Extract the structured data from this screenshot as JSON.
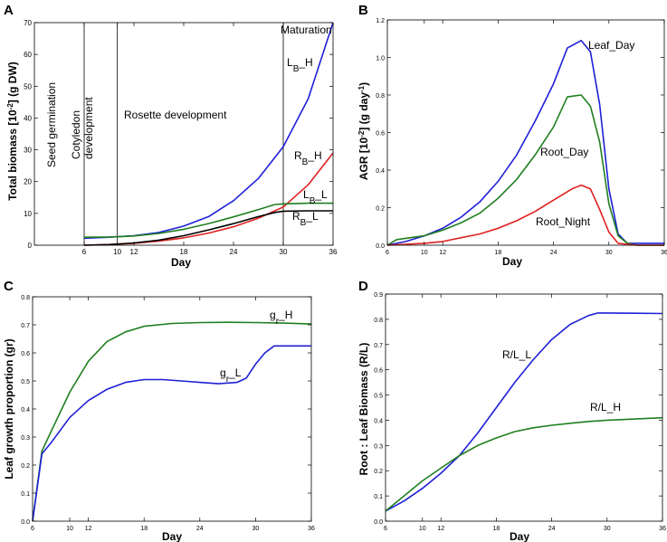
{
  "chart_data": [
    {
      "panel": "A",
      "type": "line",
      "xlabel": "Day",
      "ylabel": "Total biomass [10^-2] (g DW)",
      "ylabel_parts": {
        "pre": "Total biomass [10",
        "sup": "-2",
        "post": "] (g DW)"
      },
      "xlim": [
        0,
        36
      ],
      "ylim": [
        0,
        70
      ],
      "xticks": [
        "6",
        "10",
        "12",
        "18",
        "24",
        "30",
        "36"
      ],
      "xtick_values": [
        6,
        10,
        12,
        18,
        24,
        30,
        36
      ],
      "yticks": [
        "0",
        "10",
        "20",
        "30",
        "40",
        "50",
        "60",
        "70"
      ],
      "ytick_values": [
        0,
        10,
        20,
        30,
        40,
        50,
        60,
        70
      ],
      "phase_lines": [
        6,
        10,
        30
      ],
      "phases": [
        "Seed germination",
        "Cotyledon development",
        "Rosette development",
        "Maturation"
      ],
      "series": [
        {
          "name": "LB_H",
          "label_main": "L",
          "label_sub": "B",
          "label_suffix": "_H",
          "color": "#1f1fd6",
          "x": [
            6,
            9,
            12,
            15,
            18,
            21,
            24,
            27,
            30,
            33,
            36
          ],
          "values": [
            2.2,
            2.5,
            3,
            4,
            6,
            9,
            14,
            21,
            31,
            46,
            70
          ]
        },
        {
          "name": "RB_H",
          "label_main": "R",
          "label_sub": "B",
          "label_suffix": "_H",
          "color": "#e02020",
          "x": [
            6,
            9,
            12,
            15,
            18,
            21,
            24,
            27,
            30,
            33,
            36
          ],
          "values": [
            0,
            0.2,
            0.6,
            1.3,
            2.3,
            3.8,
            5.8,
            8.5,
            12,
            19,
            29
          ]
        },
        {
          "name": "LB_L",
          "label_main": "L",
          "label_sub": "B",
          "label_suffix": "_L",
          "color": "#1f7f1f",
          "x": [
            6,
            9,
            12,
            15,
            18,
            21,
            24,
            27,
            29,
            30,
            33,
            36
          ],
          "values": [
            2.5,
            2.6,
            2.9,
            3.7,
            5,
            6.8,
            8.9,
            11.2,
            12.8,
            13,
            13.2,
            13.2
          ]
        },
        {
          "name": "RB_L",
          "label_main": "R",
          "label_sub": "B",
          "label_suffix": "_L",
          "color": "#000000",
          "x": [
            6,
            9,
            12,
            15,
            18,
            21,
            24,
            27,
            29,
            30,
            33,
            36
          ],
          "values": [
            0,
            0.2,
            0.7,
            1.6,
            3,
            4.8,
            6.8,
            9,
            10.3,
            10.7,
            10.8,
            10.8
          ]
        }
      ]
    },
    {
      "panel": "B",
      "type": "line",
      "xlabel": "Day",
      "ylabel": "AGR [10^-2] (g day^-1)",
      "ylabel_parts": {
        "pre": "AGR [10",
        "sup": "-2",
        "mid": "] (g day",
        "sup2": "-1",
        "post": ")"
      },
      "xlim": [
        6,
        36
      ],
      "ylim": [
        0,
        1.2
      ],
      "xticks": [
        "6",
        "10",
        "12",
        "18",
        "24",
        "30",
        "36"
      ],
      "xtick_values": [
        6,
        10,
        12,
        18,
        24,
        30,
        36
      ],
      "yticks": [
        "0.0",
        "0.2",
        "0.4",
        "0.6",
        "0.8",
        "1.0",
        "1.2"
      ],
      "ytick_values": [
        0,
        0.2,
        0.4,
        0.6,
        0.8,
        1.0,
        1.2
      ],
      "series": [
        {
          "name": "Leaf_Day",
          "color": "#1f1fd6",
          "x": [
            6,
            8,
            10,
            12,
            14,
            16,
            18,
            20,
            22,
            24,
            25.5,
            27,
            28,
            29,
            30,
            31,
            32,
            33,
            36
          ],
          "values": [
            0,
            0.02,
            0.05,
            0.09,
            0.15,
            0.23,
            0.34,
            0.48,
            0.66,
            0.86,
            1.05,
            1.09,
            1.03,
            0.75,
            0.3,
            0.06,
            0.01,
            0.01,
            0.01
          ]
        },
        {
          "name": "Root_Day",
          "color": "#1f7f1f",
          "x": [
            6,
            7,
            10,
            12,
            14,
            16,
            18,
            20,
            22,
            24,
            25.5,
            27,
            28,
            29,
            30,
            31,
            32,
            33,
            36
          ],
          "values": [
            0,
            0.03,
            0.05,
            0.08,
            0.12,
            0.17,
            0.25,
            0.35,
            0.48,
            0.63,
            0.79,
            0.8,
            0.74,
            0.55,
            0.22,
            0.05,
            0.01,
            0,
            0
          ]
        },
        {
          "name": "Root_Night",
          "color": "#e02020",
          "x": [
            6,
            10,
            12,
            14,
            16,
            18,
            20,
            22,
            24,
            26,
            27,
            28,
            29,
            30,
            31,
            33,
            36
          ],
          "values": [
            0,
            0.01,
            0.02,
            0.04,
            0.06,
            0.09,
            0.13,
            0.18,
            0.24,
            0.3,
            0.32,
            0.3,
            0.19,
            0.07,
            0.01,
            0,
            0
          ]
        }
      ]
    },
    {
      "panel": "C",
      "type": "line",
      "xlabel": "Day",
      "ylabel": "Leaf growth proportion (gr)",
      "xlim": [
        6,
        36
      ],
      "ylim": [
        0,
        0.8
      ],
      "xticks": [
        "6",
        "10",
        "12",
        "18",
        "24",
        "30",
        "36"
      ],
      "xtick_values": [
        6,
        10,
        12,
        18,
        24,
        30,
        36
      ],
      "yticks": [
        "0.0",
        "0.1",
        "0.2",
        "0.3",
        "0.4",
        "0.5",
        "0.6",
        "0.7",
        "0.8"
      ],
      "ytick_values": [
        0,
        0.1,
        0.2,
        0.3,
        0.4,
        0.5,
        0.6,
        0.7,
        0.8
      ],
      "series": [
        {
          "name": "gr_H",
          "label_main": "g",
          "label_sub": "r",
          "label_suffix": "_H",
          "color": "#1f7f1f",
          "x": [
            6,
            7,
            8,
            10,
            12,
            14,
            16,
            18,
            21,
            24,
            27,
            30,
            33,
            36
          ],
          "values": [
            0,
            0.25,
            0.32,
            0.46,
            0.57,
            0.64,
            0.675,
            0.695,
            0.705,
            0.708,
            0.709,
            0.708,
            0.706,
            0.703
          ]
        },
        {
          "name": "gr_L",
          "label_main": "g",
          "label_sub": "r",
          "label_suffix": "_L",
          "color": "#1f1fd6",
          "x": [
            6,
            7,
            8,
            10,
            12,
            14,
            16,
            18,
            20,
            22,
            24,
            26,
            28,
            29,
            30,
            31,
            32,
            33,
            36
          ],
          "values": [
            0,
            0.24,
            0.28,
            0.37,
            0.43,
            0.47,
            0.495,
            0.505,
            0.505,
            0.5,
            0.495,
            0.49,
            0.495,
            0.51,
            0.56,
            0.6,
            0.625,
            0.625,
            0.625
          ]
        }
      ]
    },
    {
      "panel": "D",
      "type": "line",
      "xlabel": "Day",
      "ylabel": "Root : Leaf Biomass (R/L)",
      "xlim": [
        6,
        36
      ],
      "ylim": [
        0,
        0.9
      ],
      "xticks": [
        "6",
        "10",
        "12",
        "18",
        "24",
        "30",
        "36"
      ],
      "xtick_values": [
        6,
        10,
        12,
        18,
        24,
        30,
        36
      ],
      "yticks": [
        "0.0",
        "0.1",
        "0.2",
        "0.3",
        "0.4",
        "0.5",
        "0.6",
        "0.7",
        "0.8",
        "0.9"
      ],
      "ytick_values": [
        0,
        0.1,
        0.2,
        0.3,
        0.4,
        0.5,
        0.6,
        0.7,
        0.8,
        0.9
      ],
      "series": [
        {
          "name": "R/L_L",
          "color": "#1f1fd6",
          "x": [
            6,
            8,
            10,
            12,
            14,
            16,
            18,
            20,
            22,
            24,
            26,
            28,
            29,
            30,
            33,
            36
          ],
          "values": [
            0.04,
            0.08,
            0.13,
            0.19,
            0.26,
            0.35,
            0.45,
            0.55,
            0.64,
            0.72,
            0.78,
            0.815,
            0.825,
            0.825,
            0.824,
            0.823
          ]
        },
        {
          "name": "R/L_H",
          "color": "#1f7f1f",
          "x": [
            6,
            8,
            10,
            12,
            14,
            16,
            18,
            20,
            22,
            24,
            26,
            28,
            30,
            33,
            36
          ],
          "values": [
            0.04,
            0.1,
            0.16,
            0.21,
            0.26,
            0.3,
            0.33,
            0.355,
            0.37,
            0.38,
            0.388,
            0.395,
            0.4,
            0.405,
            0.41
          ]
        }
      ]
    }
  ]
}
